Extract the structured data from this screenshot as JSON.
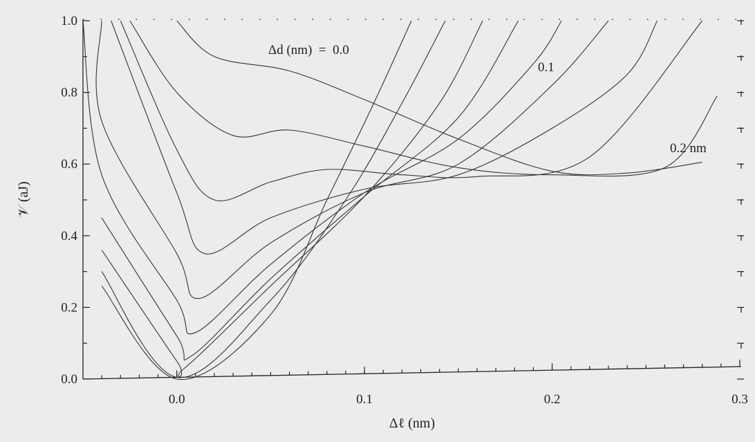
{
  "chart_data": {
    "type": "line",
    "xlabel": "Δℓ (nm)",
    "ylabel": "𝒱 (aJ)",
    "xlim": [
      -0.05,
      0.3
    ],
    "ylim": [
      0.0,
      1.0
    ],
    "x_ticks": [
      "0.0",
      "0.1",
      "0.2",
      "0.3"
    ],
    "y_ticks": [
      "0.0",
      "0.2",
      "0.4",
      "0.6",
      "0.8",
      "1.0"
    ],
    "grid": false,
    "legend": "none",
    "line_color": "#333333",
    "annotations": [
      {
        "text": "Δd (nm)  =  0.0"
      },
      {
        "text": "0.1"
      },
      {
        "text": "0.2 nm"
      }
    ],
    "series": [
      {
        "values": [
          [
            0.0,
            1.0
          ],
          [
            0.02,
            0.9
          ],
          [
            0.06,
            0.86
          ],
          [
            0.1,
            0.78
          ],
          [
            0.15,
            0.67
          ],
          [
            0.2,
            0.58
          ],
          [
            0.24,
            0.575
          ],
          [
            0.28,
            0.605
          ]
        ]
      },
      {
        "values": [
          [
            -0.025,
            1.0
          ],
          [
            0.0,
            0.8
          ],
          [
            0.03,
            0.68
          ],
          [
            0.06,
            0.695
          ],
          [
            0.1,
            0.65
          ],
          [
            0.15,
            0.59
          ],
          [
            0.2,
            0.57
          ],
          [
            0.26,
            0.59
          ],
          [
            0.288,
            0.79
          ]
        ]
      },
      {
        "values": [
          [
            -0.03,
            1.0
          ],
          [
            0.0,
            0.64
          ],
          [
            0.02,
            0.5
          ],
          [
            0.05,
            0.55
          ],
          [
            0.08,
            0.585
          ],
          [
            0.12,
            0.57
          ],
          [
            0.16,
            0.565
          ],
          [
            0.22,
            0.62
          ],
          [
            0.28,
            1.0
          ]
        ]
      },
      {
        "values": [
          [
            -0.035,
            1.0
          ],
          [
            0.0,
            0.52
          ],
          [
            0.015,
            0.35
          ],
          [
            0.05,
            0.45
          ],
          [
            0.1,
            0.53
          ],
          [
            0.15,
            0.57
          ],
          [
            0.2,
            0.7
          ],
          [
            0.24,
            0.85
          ],
          [
            0.256,
            1.0
          ]
        ]
      },
      {
        "values": [
          [
            -0.04,
            1.0
          ],
          [
            -0.04,
            0.72
          ],
          [
            0.0,
            0.35
          ],
          [
            0.012,
            0.225
          ],
          [
            0.05,
            0.38
          ],
          [
            0.1,
            0.52
          ],
          [
            0.15,
            0.6
          ],
          [
            0.2,
            0.82
          ],
          [
            0.23,
            1.0
          ]
        ]
      },
      {
        "values": [
          [
            -0.05,
            1.0
          ],
          [
            -0.04,
            0.57
          ],
          [
            0.0,
            0.22
          ],
          [
            0.01,
            0.13
          ],
          [
            0.05,
            0.32
          ],
          [
            0.1,
            0.52
          ],
          [
            0.15,
            0.67
          ],
          [
            0.19,
            0.88
          ],
          [
            0.205,
            1.0
          ]
        ]
      },
      {
        "values": [
          [
            -0.04,
            0.45
          ],
          [
            0.0,
            0.12
          ],
          [
            0.008,
            0.065
          ],
          [
            0.05,
            0.28
          ],
          [
            0.1,
            0.51
          ],
          [
            0.15,
            0.73
          ],
          [
            0.182,
            1.0
          ]
        ]
      },
      {
        "values": [
          [
            -0.04,
            0.36
          ],
          [
            0.0,
            0.05
          ],
          [
            0.004,
            0.03
          ],
          [
            0.05,
            0.26
          ],
          [
            0.1,
            0.51
          ],
          [
            0.14,
            0.77
          ],
          [
            0.163,
            1.0
          ]
        ]
      },
      {
        "values": [
          [
            -0.04,
            0.3
          ],
          [
            0.0,
            0.005
          ],
          [
            0.05,
            0.22
          ],
          [
            0.09,
            0.5
          ],
          [
            0.12,
            0.77
          ],
          [
            0.143,
            1.0
          ]
        ]
      },
      {
        "values": [
          [
            -0.04,
            0.26
          ],
          [
            0.0,
            0.0
          ],
          [
            0.05,
            0.18
          ],
          [
            0.08,
            0.5
          ],
          [
            0.105,
            0.77
          ],
          [
            0.125,
            1.0
          ]
        ]
      }
    ]
  }
}
